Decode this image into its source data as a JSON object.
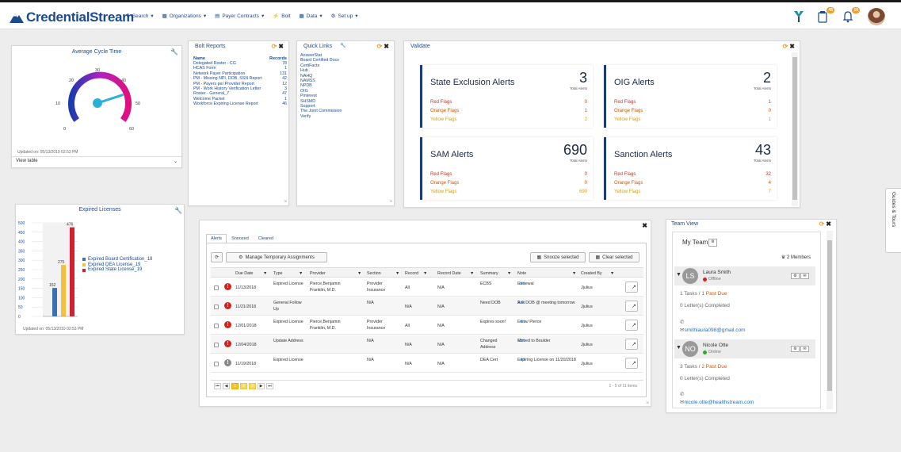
{
  "brand": {
    "name": "CredentialStream"
  },
  "nav": [
    {
      "label": "Search",
      "icon": "search-icon"
    },
    {
      "label": "Organizations",
      "icon": "building-icon"
    },
    {
      "label": "Payer Contracts",
      "icon": "document-icon"
    },
    {
      "label": "Bolt",
      "icon": "bolt-icon"
    },
    {
      "label": "Data",
      "icon": "bar-chart-icon"
    },
    {
      "label": "Set up",
      "icon": "gears-icon"
    }
  ],
  "notifications": {
    "tasks_badge": "45",
    "alerts_badge": "10"
  },
  "cycle_time": {
    "title": "Average Cycle Time",
    "updated": "Updated on: 05/13/2019 02:53 PM",
    "view_table": "View table",
    "ticks": [
      "0",
      "10",
      "20",
      "30",
      "40",
      "50",
      "60"
    ],
    "gauge_value": 46
  },
  "bolt_reports": {
    "title": "Bolt Reports",
    "col_name": "Name",
    "col_records": "Records",
    "rows": [
      {
        "name": "Delegated Roster - CG",
        "records": "78"
      },
      {
        "name": "HCAS Form",
        "records": "1"
      },
      {
        "name": "Network Payer Participation",
        "records": "131"
      },
      {
        "name": "PM - Missing NPI, DOB, SSN Report",
        "records": "42"
      },
      {
        "name": "PM - Payers per Provider Report",
        "records": "12"
      },
      {
        "name": "PM - Work History Verification Letter",
        "records": "3"
      },
      {
        "name": "Roster - General_7",
        "records": "47"
      },
      {
        "name": "Welcome Packet",
        "records": "1"
      },
      {
        "name": "Workforce Expiring License Report",
        "records": "46"
      }
    ]
  },
  "quick_links": {
    "title": "Quick Links",
    "items": [
      "AnswerStat",
      "Board Certified Docs",
      "CertiFacts",
      "Hub",
      "NAHQ",
      "NAMSS",
      "NPDB",
      "OIG",
      "Pinterest",
      "SHSMD",
      "Support",
      "The Joint Commission",
      "Verify"
    ]
  },
  "validate": {
    "title": "Validate",
    "total_label": "Total Alerts",
    "red_label": "Red Flags",
    "orange_label": "Orange Flags",
    "yellow_label": "Yellow Flags",
    "state": {
      "title": "State Exclusion Alerts",
      "total": "3",
      "red": "0",
      "orange": "1",
      "yellow": "2"
    },
    "oig": {
      "title": "OIG Alerts",
      "total": "2",
      "red": "1",
      "orange": "0",
      "yellow": "1"
    },
    "sam": {
      "title": "SAM Alerts",
      "total": "690",
      "red": "0",
      "orange": "0",
      "yellow": "690"
    },
    "sanction": {
      "title": "Sanction Alerts",
      "total": "43",
      "red": "32",
      "orange": "4",
      "yellow": "7"
    }
  },
  "expired_licenses": {
    "title": "Expired Licenses",
    "updated": "Updated on: 05/13/2019 02:53 PM"
  },
  "chart_data": {
    "type": "bar",
    "title": "Expired Licenses",
    "categories": [
      "Expired Board Certification_18",
      "Expired DEA License_19",
      "Expired State License_19"
    ],
    "values": [
      152,
      275,
      476
    ],
    "colors": [
      "#3a6fb0",
      "#f5c040",
      "#d32030"
    ],
    "ylim": [
      0,
      500
    ],
    "yticks": [
      "0",
      "50",
      "100",
      "150",
      "200",
      "250",
      "300",
      "350",
      "400",
      "450",
      "500"
    ],
    "legend": "right"
  },
  "alerts_panel": {
    "tabs": [
      "Alerts",
      "Snoozed",
      "Cleared"
    ],
    "manage_btn": "Manage Temporary Assignments",
    "snooze_btn": "Snooze selected",
    "clear_btn": "Clear selected",
    "columns": [
      "Due Date",
      "Type",
      "Provider",
      "Section",
      "Record",
      "Record Date",
      "Summary",
      "Note",
      "Created By"
    ],
    "rows": [
      {
        "due": "11/13/2018",
        "type": "Expired License",
        "provider": "Pierce,Benjamin Franklin, M.D.",
        "section": "Provider Insurance",
        "record": "All",
        "record_date": "N/A",
        "summary": "ECBS",
        "note": "Renewal",
        "note_link": "Edit",
        "by": "Jjulius",
        "level": "red"
      },
      {
        "due": "11/21/2018",
        "type": "General Follow Up",
        "provider": "",
        "section": "N/A",
        "record": "N/A",
        "record_date": "N/A",
        "summary": "Need DOB",
        "note": "Ask DOB @ meeting tomorrow",
        "note_link": "Edit",
        "by": "Jjulius",
        "level": "red"
      },
      {
        "due": "12/01/2018",
        "type": "Expired License",
        "provider": "Pierce,Benjamin Franklin, M.D.",
        "section": "Provider Insurance",
        "record": "All",
        "record_date": "N/A",
        "summary": "Expires soon!",
        "note": "Fw w/ Pierce",
        "note_link": "Edit",
        "by": "Jjulius",
        "level": "red"
      },
      {
        "due": "12/04/2018",
        "type": "Update Address",
        "provider": "",
        "section": "N/A",
        "record": "N/A",
        "record_date": "N/A",
        "summary": "Changed Address",
        "note": "Moved to Boulder",
        "note_link": "Edit",
        "by": "Jjulius",
        "level": "red"
      },
      {
        "due": "11/19/2018",
        "type": "Expired License",
        "provider": "",
        "section": "N/A",
        "record": "N/A",
        "record_date": "N/A",
        "summary": "DEA Cert",
        "note": "Expiring License on 11/20/2018",
        "note_link": "Edit",
        "by": "Jjulius",
        "level": "gray"
      }
    ],
    "pages": [
      "1",
      "2",
      "3"
    ],
    "pager_info": "1 - 5 of 11 items"
  },
  "team_view": {
    "title": "Team View",
    "my_team": "My Team",
    "members_count": "2 Members",
    "members": [
      {
        "initials": "LS",
        "name": "Laura Smith",
        "status": "Offline",
        "status_color": "#d62020",
        "tasks": "1 Tasks",
        "past_due": "1 Past Due",
        "letters": "0 Letter(s) Completed",
        "email": "smithlaura098@gmail.com"
      },
      {
        "initials": "NO",
        "name": "Nicole Otte",
        "status": "Online",
        "status_color": "#2eaa2e",
        "tasks": "3 Tasks",
        "past_due": "2 Past Due",
        "letters": "0 Letter(s) Completed",
        "email": "nicole.otte@healthstream.com"
      }
    ]
  },
  "guides": {
    "label": "Guides & Tours"
  }
}
